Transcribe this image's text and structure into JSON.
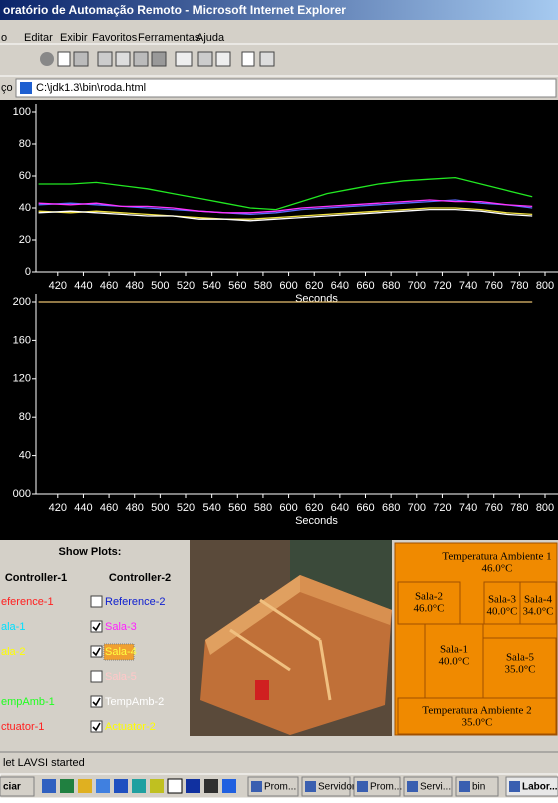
{
  "window": {
    "title": "oratório de Automação Remoto - Microsoft Internet Explorer",
    "menu": [
      "o",
      "Editar",
      "Exibir",
      "Favoritos",
      "Ferramentas",
      "Ajuda"
    ],
    "address_label": "ço",
    "address": "C:\\jdk1.3\\bin\\roda.html"
  },
  "chart_data": [
    {
      "type": "line",
      "x_label": "Seconds",
      "xlim": [
        403,
        800
      ],
      "xticks": [
        420,
        440,
        460,
        480,
        500,
        520,
        540,
        560,
        580,
        600,
        620,
        640,
        660,
        680,
        700,
        720,
        740,
        760,
        780,
        800
      ],
      "ylim": [
        0,
        100
      ],
      "yticks": [
        0,
        20,
        40,
        60,
        80,
        100
      ],
      "x": [
        405,
        430,
        450,
        470,
        490,
        510,
        530,
        550,
        570,
        590,
        610,
        630,
        650,
        670,
        690,
        710,
        730,
        750,
        770,
        790
      ],
      "series": [
        {
          "color": "#22e822",
          "values": [
            55,
            55,
            56,
            54,
            52,
            49,
            46,
            43,
            40,
            39,
            44,
            49,
            52,
            55,
            57,
            58,
            59,
            55,
            51,
            47
          ]
        },
        {
          "color": "#5a6cff",
          "values": [
            42,
            43,
            42,
            41,
            40,
            39,
            38,
            37,
            36,
            37,
            39,
            40,
            41,
            42,
            43,
            44,
            45,
            43,
            42,
            40
          ]
        },
        {
          "color": "#ff33ff",
          "values": [
            43,
            42,
            43,
            41,
            41,
            40,
            38,
            37,
            37,
            38,
            40,
            41,
            42,
            43,
            44,
            45,
            44,
            44,
            42,
            41
          ]
        },
        {
          "color": "#f0e040",
          "values": [
            38,
            37,
            38,
            37,
            36,
            35,
            34,
            33,
            33,
            34,
            35,
            36,
            37,
            38,
            39,
            40,
            40,
            39,
            37,
            36
          ]
        },
        {
          "color": "#ffffff",
          "values": [
            37,
            38,
            37,
            36,
            35,
            35,
            33,
            33,
            32,
            33,
            34,
            35,
            36,
            37,
            38,
            39,
            39,
            38,
            36,
            35
          ]
        }
      ]
    },
    {
      "type": "line",
      "x_label": "Seconds",
      "xlim": [
        403,
        800
      ],
      "xticks": [
        420,
        440,
        460,
        480,
        500,
        520,
        540,
        560,
        580,
        600,
        620,
        640,
        660,
        680,
        700,
        720,
        740,
        760,
        780,
        800
      ],
      "ylim": [
        0,
        200
      ],
      "yticks": [
        {
          "value": 0,
          "label": "000"
        },
        40,
        80,
        120,
        160,
        200
      ],
      "x": [
        405,
        790
      ],
      "series": [
        {
          "color": "#e8c070",
          "values": [
            200,
            200
          ]
        }
      ]
    }
  ],
  "controls": {
    "title": "Show Plots:",
    "col1_title": "Controller-1",
    "col2_title": "Controller-2",
    "col1": [
      {
        "label": "eference-1",
        "color": "#ff2020"
      },
      {
        "label": "ala-1",
        "color": "#00e0ff"
      },
      {
        "label": "ala-2",
        "color": "#ffff00"
      },
      {
        "label": "empAmb-1",
        "color": "#20ff20"
      },
      {
        "label": "ctuator-1",
        "color": "#ff2020"
      }
    ],
    "col2": [
      {
        "label": "Reference-2",
        "color": "#1020d0",
        "checked": false
      },
      {
        "label": "Sala-3",
        "color": "#ff20ff",
        "checked": true
      },
      {
        "label": "Sala-4",
        "color": "#ffff40",
        "checked": true
      },
      {
        "label": "Sala-5",
        "color": "#ffc8c8",
        "checked": false
      },
      {
        "label": "TempAmb-2",
        "color": "#ffffff",
        "checked": true
      },
      {
        "label": "Actuator-2",
        "color": "#ffff00",
        "checked": true
      }
    ]
  },
  "diagram": {
    "amb1": {
      "label": "Temperatura Ambiente 1",
      "value": "46.0°C"
    },
    "sala2": {
      "label": "Sala-2",
      "value": "46.0°C"
    },
    "sala3": {
      "label": "Sala-3",
      "value": "40.0°C"
    },
    "sala4": {
      "label": "Sala-4",
      "value": "34.0°C"
    },
    "sala1": {
      "label": "Sala-1",
      "value": "40.0°C"
    },
    "sala5": {
      "label": "Sala-5",
      "value": "35.0°C"
    },
    "amb2": {
      "label": "Temperatura Ambiente 2",
      "value": "35.0°C"
    }
  },
  "status": "let LAVSI started",
  "taskbar": [
    "ciar",
    "Prom...",
    "Servidor",
    "Prom...",
    "Servi...",
    "bin",
    "Labor..."
  ]
}
